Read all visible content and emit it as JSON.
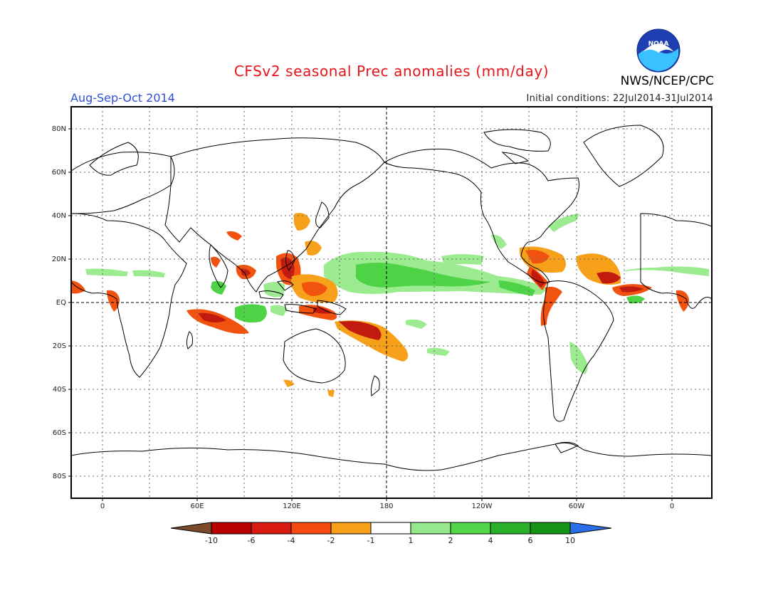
{
  "title": "CFSv2 seasonal Prec anomalies (mm/day)",
  "period": "Aug-Sep-Oct 2014",
  "initial_conditions": "Initial conditions: 22Jul2014-31Jul2014",
  "agency": "NWS/NCEP/CPC",
  "logo": {
    "icon": "noaa-logo-icon",
    "text": "NOAA"
  },
  "map": {
    "lat_ticks": [
      "80N",
      "60N",
      "40N",
      "20N",
      "EQ",
      "20S",
      "40S",
      "60S",
      "80S"
    ],
    "lon_ticks": [
      "0",
      "60E",
      "120E",
      "180",
      "120W",
      "60W",
      "0"
    ],
    "gridlines": true
  },
  "legend": {
    "labels": [
      "-10",
      "-6",
      "-4",
      "-2",
      "-1",
      "1",
      "2",
      "4",
      "6",
      "10"
    ],
    "colors": [
      "#7a4a2a",
      "#b80000",
      "#d91a10",
      "#f54a12",
      "#f7a01a",
      "#ffffff",
      "#96e88c",
      "#52d64a",
      "#2aaf2a",
      "#169216",
      "#2a6fe8"
    ]
  },
  "anomaly_colors": {
    "dry_strong": "#c31a10",
    "dry_moderate": "#f2520f",
    "dry_weak": "#f7a01a",
    "wet_weak": "#9ceb90",
    "wet_moderate": "#4fd346",
    "wet_strong": "#249e24"
  }
}
